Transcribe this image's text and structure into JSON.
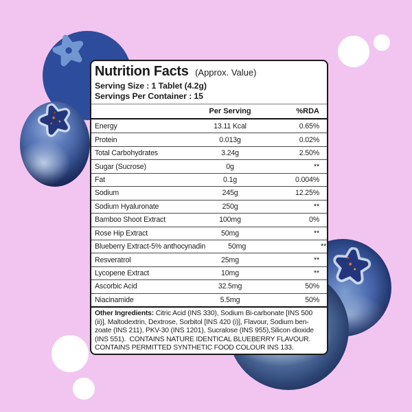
{
  "theme": {
    "bg": "#F2C5F0",
    "flat-circle": "#2E4C9C",
    "star": "#7097D1",
    "card-bg": "#FFFFFF",
    "card-border": "#1A1A1A",
    "text": "#1C1C1C",
    "bubble": "#FFFFFF",
    "berry-dark": "#1E2F62",
    "berry-frost": "#D2E0F2",
    "calyx": "#23357C",
    "speck": "#C0762C"
  },
  "decorations": {
    "flat_blueberry": "cartoon-blueberry-circle-with-star",
    "bubbles": [
      "top-right-large",
      "top-right-small",
      "bottom-left-large",
      "bottom-left-small"
    ],
    "berries": [
      "left-blueberry",
      "upper-right-blueberry",
      "bottom-right-blueberry"
    ]
  },
  "label": {
    "title": "Nutrition Facts",
    "title_suffix": "(Approx. Value)",
    "serving_size": "Serving Size : 1 Tablet (4.2g)",
    "servings_per_container": "Servings Per Container : 15",
    "columns": {
      "per_serving": "Per Serving",
      "rda": "%RDA"
    },
    "rows": [
      {
        "name": "Energy",
        "per_serving": "13.11 Kcal",
        "rda": "0.65%"
      },
      {
        "name": "Protein",
        "per_serving": "0.013g",
        "rda": "0.02%"
      },
      {
        "name": "Total Carbohydrates",
        "per_serving": "3.24g",
        "rda": "2.50%"
      },
      {
        "name": "Sugar (Sucrose)",
        "per_serving": "0g",
        "rda": "**"
      },
      {
        "name": "Fat",
        "per_serving": "0.1g",
        "rda": "0.004%"
      },
      {
        "name": "Sodium",
        "per_serving": "245g",
        "rda": "12.25%"
      },
      {
        "name": "Sodium Hyaluronate",
        "per_serving": "250g",
        "rda": "**"
      },
      {
        "name": "Bamboo Shoot Extract",
        "per_serving": "100mg",
        "rda": "0%"
      },
      {
        "name": "Rose Hip Extract",
        "per_serving": "50mg",
        "rda": "**"
      },
      {
        "name": "Blueberry Extract-5% anthocynadin",
        "per_serving": "50mg",
        "rda": "**"
      },
      {
        "name": "Resveratrol",
        "per_serving": "25mg",
        "rda": "**"
      },
      {
        "name": "Lycopene Extract",
        "per_serving": "10mg",
        "rda": "**"
      },
      {
        "name": "Ascorbic Acid",
        "per_serving": "32.5mg",
        "rda": "50%"
      },
      {
        "name": "Niacinamide",
        "per_serving": "5.5mg",
        "rda": "50%"
      }
    ],
    "footer": {
      "bold_prefix": "Other Ingredients:",
      "lines": [
        " Citric Acid (INS 330), Sodium Bi-carbonate [INS 500",
        "(ii)], Maltodextrin, Dextrose, Sorbitol [INS 420 (i)], Flavour, Sodium ben-",
        "zoate (INS 211), PKV-30 (INS 1201), Sucralose (INS 955),Silicon dioxide",
        "(INS 551).  CONTAINS NATURE IDENTICAL BLUEBERRY FLAVOUR.",
        "CONTAINS PERMITTED SYNTHETIC FOOD COLOUR INS 133."
      ]
    }
  }
}
